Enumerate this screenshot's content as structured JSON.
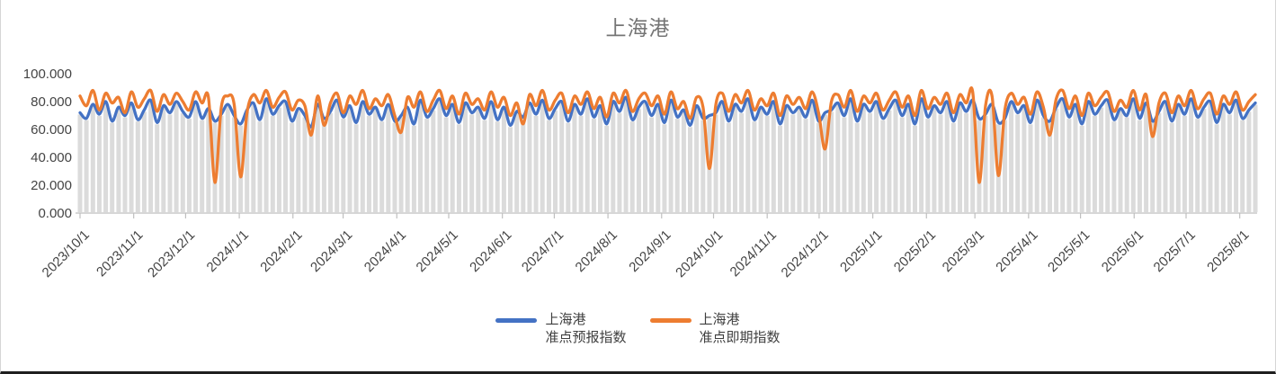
{
  "chart": {
    "title": "上海港",
    "legend": [
      {
        "name_line1": "上海港",
        "name_line2": "准点预报指数"
      },
      {
        "name_line1": "上海港",
        "name_line2": "准点即期指数"
      }
    ]
  },
  "chart_data": {
    "type": "line",
    "title": "上海港",
    "xlabel": "",
    "ylabel": "",
    "ylim": [
      0,
      100
    ],
    "x_start_date": "2023/10/1",
    "x_end_date": "2025/8/10",
    "x_span_days": 679,
    "point_interval_days": 3.71,
    "gridlines": "vertical-droplines-per-point",
    "dropline_color": "#DBDBDB",
    "axis_color": "#BFBFBF",
    "tick_label_color": "#444444",
    "title_color": "#757575",
    "legend_position": "bottom",
    "y_ticks": [
      {
        "label": "0.000",
        "value": 0
      },
      {
        "label": "20.000",
        "value": 20
      },
      {
        "label": "40.000",
        "value": 40
      },
      {
        "label": "60.000",
        "value": 60
      },
      {
        "label": "80.000",
        "value": 80
      },
      {
        "label": "100.000",
        "value": 100
      }
    ],
    "x_ticks": [
      {
        "label": "2023/10/1",
        "day": 0
      },
      {
        "label": "2023/11/1",
        "day": 31
      },
      {
        "label": "2023/12/1",
        "day": 61
      },
      {
        "label": "2024/1/1",
        "day": 92
      },
      {
        "label": "2024/2/1",
        "day": 123
      },
      {
        "label": "2024/3/1",
        "day": 152
      },
      {
        "label": "2024/4/1",
        "day": 183
      },
      {
        "label": "2024/5/1",
        "day": 213
      },
      {
        "label": "2024/6/1",
        "day": 244
      },
      {
        "label": "2024/7/1",
        "day": 274
      },
      {
        "label": "2024/8/1",
        "day": 305
      },
      {
        "label": "2024/9/1",
        "day": 336
      },
      {
        "label": "2024/10/1",
        "day": 366
      },
      {
        "label": "2024/11/1",
        "day": 397
      },
      {
        "label": "2024/12/1",
        "day": 427
      },
      {
        "label": "2025/1/1",
        "day": 458
      },
      {
        "label": "2025/2/1",
        "day": 489
      },
      {
        "label": "2025/3/1",
        "day": 517
      },
      {
        "label": "2025/4/1",
        "day": 548
      },
      {
        "label": "2025/5/1",
        "day": 578
      },
      {
        "label": "2025/6/1",
        "day": 609
      },
      {
        "label": "2025/7/1",
        "day": 639
      },
      {
        "label": "2025/8/1",
        "day": 670
      }
    ],
    "series": [
      {
        "name": "上海港 准点预报指数",
        "color": "#4472C4",
        "values": [
          72,
          68,
          78,
          71,
          80,
          66,
          76,
          70,
          79,
          67,
          74,
          81,
          65,
          77,
          72,
          80,
          73,
          69,
          80,
          68,
          75,
          66,
          71,
          78,
          70,
          64,
          74,
          79,
          67,
          82,
          71,
          77,
          80,
          66,
          75,
          70,
          62,
          78,
          68,
          73,
          81,
          69,
          77,
          65,
          80,
          71,
          76,
          67,
          78,
          66,
          70,
          76,
          64,
          81,
          69,
          75,
          82,
          70,
          78,
          65,
          79,
          72,
          76,
          68,
          80,
          67,
          76,
          63,
          73,
          69,
          79,
          71,
          81,
          68,
          75,
          80,
          66,
          78,
          71,
          82,
          69,
          77,
          64,
          80,
          73,
          83,
          67,
          76,
          80,
          70,
          78,
          65,
          81,
          69,
          74,
          63,
          77,
          68,
          70,
          72,
          80,
          66,
          78,
          73,
          82,
          67,
          76,
          71,
          80,
          64,
          77,
          72,
          76,
          69,
          81,
          66,
          72,
          74,
          79,
          70,
          82,
          66,
          78,
          73,
          80,
          68,
          75,
          81,
          70,
          78,
          64,
          82,
          69,
          77,
          72,
          80,
          66,
          79,
          73,
          81,
          68,
          71,
          78,
          65,
          68,
          80,
          72,
          77,
          65,
          81,
          70,
          66,
          76,
          82,
          69,
          78,
          64,
          80,
          71,
          77,
          81,
          67,
          75,
          70,
          82,
          68,
          79,
          66,
          73,
          80,
          66,
          78,
          71,
          82,
          69,
          76,
          80,
          65,
          78,
          72,
          81,
          68,
          74,
          79
        ]
      },
      {
        "name": "上海港 准点即期指数",
        "color": "#ED7D31",
        "values": [
          84,
          77,
          88,
          74,
          86,
          79,
          83,
          72,
          87,
          76,
          82,
          88,
          73,
          85,
          78,
          86,
          80,
          74,
          87,
          79,
          83,
          22,
          76,
          84,
          78,
          26,
          72,
          85,
          79,
          88,
          76,
          83,
          87,
          74,
          81,
          77,
          56,
          84,
          63,
          79,
          86,
          72,
          84,
          78,
          88,
          75,
          82,
          77,
          85,
          70,
          58,
          83,
          76,
          87,
          73,
          81,
          88,
          75,
          84,
          71,
          86,
          78,
          82,
          74,
          87,
          76,
          83,
          70,
          79,
          64,
          85,
          77,
          88,
          74,
          81,
          86,
          72,
          84,
          78,
          87,
          75,
          83,
          69,
          86,
          79,
          88,
          73,
          82,
          86,
          77,
          84,
          71,
          87,
          75,
          80,
          68,
          83,
          76,
          32,
          78,
          86,
          73,
          85,
          79,
          88,
          74,
          82,
          77,
          86,
          70,
          84,
          78,
          83,
          75,
          87,
          72,
          46,
          80,
          85,
          76,
          88,
          73,
          84,
          79,
          86,
          74,
          81,
          87,
          76,
          84,
          70,
          88,
          75,
          83,
          78,
          86,
          72,
          85,
          79,
          87,
          22,
          77,
          84,
          27,
          74,
          86,
          78,
          83,
          71,
          87,
          76,
          56,
          82,
          88,
          75,
          84,
          70,
          86,
          77,
          83,
          87,
          73,
          81,
          76,
          88,
          74,
          85,
          55,
          79,
          86,
          72,
          84,
          77,
          88,
          75,
          82,
          86,
          71,
          84,
          78,
          87,
          74,
          80,
          85
        ]
      }
    ]
  }
}
